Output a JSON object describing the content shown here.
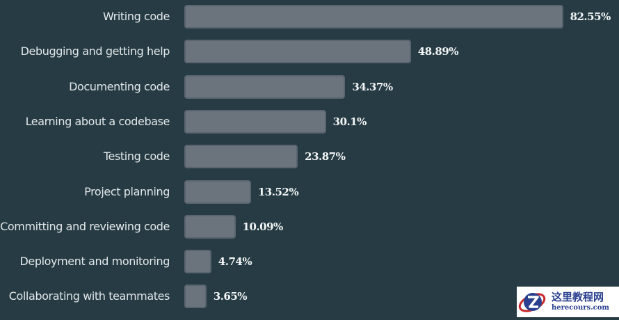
{
  "chart_data": {
    "type": "bar",
    "orientation": "horizontal",
    "title": "",
    "xlabel": "",
    "ylabel": "",
    "xlim": [
      0,
      100
    ],
    "grid": false,
    "categories": [
      "Writing code",
      "Debugging and getting help",
      "Documenting code",
      "Learning about a codebase",
      "Testing code",
      "Project planning",
      "Committing and reviewing code",
      "Deployment and monitoring",
      "Collaborating with teammates"
    ],
    "values": [
      82.55,
      48.89,
      34.37,
      30.1,
      23.87,
      13.52,
      10.09,
      4.74,
      3.65
    ],
    "value_labels": [
      "82.55%",
      "48.89%",
      "34.37%",
      "30.1%",
      "23.87%",
      "13.52%",
      "10.09%",
      "4.74%",
      "3.65%"
    ],
    "colors": {
      "background": "#263b43",
      "bar_fill": "#6b737d",
      "bar_border": "#596470",
      "label": "#e3e8ea",
      "value_label": "#f4f6f7"
    }
  },
  "watermark": {
    "title": "这里教程网",
    "subtitle": "herecours.com",
    "icon": "z-logo-icon"
  }
}
